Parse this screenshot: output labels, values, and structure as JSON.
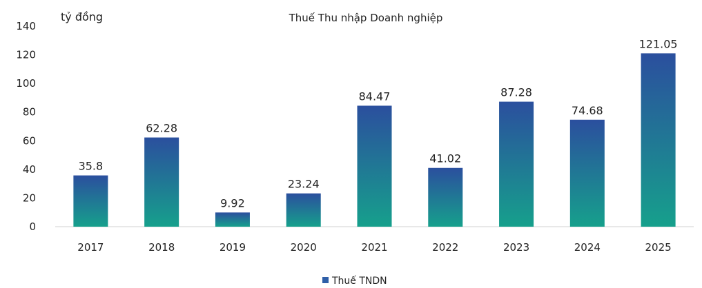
{
  "chart_data": {
    "type": "bar",
    "title": "Thuế Thu nhập Doanh nghiệp",
    "unit_label": "tỷ đồng",
    "categories": [
      "2017",
      "2018",
      "2019",
      "2020",
      "2021",
      "2022",
      "2023",
      "2024",
      "2025"
    ],
    "series": [
      {
        "name": "Thuế TNDN",
        "values": [
          35.8,
          62.28,
          9.92,
          23.24,
          84.47,
          41.02,
          87.28,
          74.68,
          121.05
        ],
        "labels": [
          "35.8",
          "62.28",
          "9.92",
          "23.24",
          "84.47",
          "41.02",
          "87.28",
          "74.68",
          "121.05"
        ]
      }
    ],
    "ylim": [
      0,
      140
    ],
    "yticks": [
      0,
      20,
      40,
      60,
      80,
      100,
      120,
      140
    ],
    "grid": false,
    "legend_position": "bottom-center",
    "colors": {
      "bar_top": "#2b4f9e",
      "bar_bottom": "#16a08c",
      "legend_swatch": "#2f5fa8"
    }
  }
}
